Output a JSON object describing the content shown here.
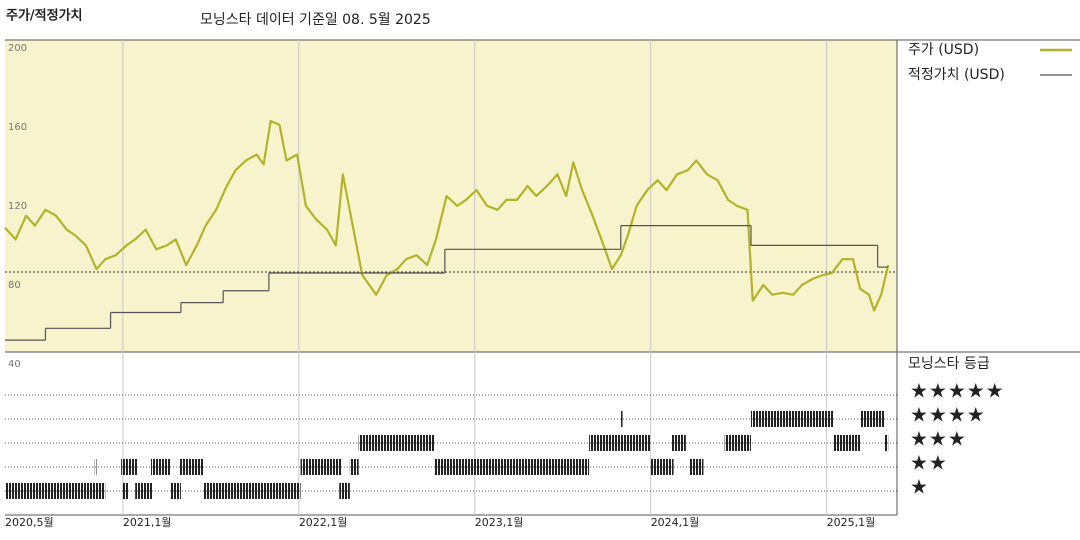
{
  "chart_data": {
    "type": "line",
    "title": "주가/적정가치",
    "subtitle": "모닝스타 데이터 기준일 08. 5월 2025",
    "xlim": [
      2020.33,
      2025.4
    ],
    "xticks": [
      {
        "value": 2020.33,
        "label": "2020,5월"
      },
      {
        "value": 2021.0,
        "label": "2021,1월"
      },
      {
        "value": 2022.0,
        "label": "2022,1월"
      },
      {
        "value": 2023.0,
        "label": "2023,1월"
      },
      {
        "value": 2024.0,
        "label": "2024,1월"
      },
      {
        "value": 2025.0,
        "label": "2025,1월"
      }
    ],
    "ylim": [
      46,
      204
    ],
    "yticks": [
      40,
      80,
      120,
      160,
      200
    ],
    "reference_line": 86.5,
    "series": [
      {
        "name": "주가 (USD)",
        "color": "#b3b32a",
        "x": [
          2020.33,
          2020.39,
          2020.45,
          2020.5,
          2020.56,
          2020.62,
          2020.68,
          2020.73,
          2020.79,
          2020.85,
          2020.9,
          2020.96,
          2021.02,
          2021.07,
          2021.13,
          2021.19,
          2021.25,
          2021.3,
          2021.36,
          2021.42,
          2021.47,
          2021.53,
          2021.59,
          2021.64,
          2021.7,
          2021.76,
          2021.8,
          2021.84,
          2021.89,
          2021.93,
          2021.99,
          2022.04,
          2022.1,
          2022.16,
          2022.21,
          2022.25,
          2022.3,
          2022.36,
          2022.4,
          2022.44,
          2022.5,
          2022.56,
          2022.61,
          2022.67,
          2022.73,
          2022.78,
          2022.84,
          2022.9,
          2022.95,
          2023.01,
          2023.07,
          2023.13,
          2023.18,
          2023.24,
          2023.3,
          2023.35,
          2023.41,
          2023.47,
          2023.52,
          2023.56,
          2023.61,
          2023.67,
          2023.72,
          2023.78,
          2023.83,
          2023.87,
          2023.92,
          2023.98,
          2024.04,
          2024.09,
          2024.15,
          2024.21,
          2024.26,
          2024.32,
          2024.38,
          2024.44,
          2024.49,
          2024.55,
          2024.58,
          2024.64,
          2024.69,
          2024.75,
          2024.81,
          2024.86,
          2024.92,
          2024.98,
          2025.03,
          2025.09,
          2025.15,
          2025.19,
          2025.24,
          2025.27,
          2025.31,
          2025.35
        ],
        "values": [
          109,
          103,
          115,
          110,
          118,
          115,
          108,
          105,
          100,
          88,
          93,
          95,
          100,
          103,
          108,
          98,
          100,
          103,
          90,
          100,
          110,
          118,
          130,
          138,
          143,
          146,
          141,
          163,
          161,
          143,
          146,
          120,
          113,
          108,
          100,
          136,
          113,
          85,
          80,
          75,
          85,
          88,
          93,
          95,
          90,
          103,
          125,
          120,
          123,
          128,
          120,
          118,
          123,
          123,
          130,
          125,
          130,
          136,
          125,
          142,
          128,
          115,
          103,
          88,
          95,
          105,
          120,
          128,
          133,
          128,
          136,
          138,
          143,
          136,
          133,
          123,
          120,
          118,
          72,
          80,
          75,
          76,
          75,
          80,
          83,
          85,
          86,
          93,
          93,
          78,
          75,
          67,
          75,
          90
        ]
      },
      {
        "name": "적정가치 (USD)",
        "color": "#555555",
        "step": true,
        "x": [
          2020.33,
          2020.56,
          2020.93,
          2021.33,
          2021.57,
          2021.83,
          2022.83,
          2023.83,
          2024.57,
          2025.29
        ],
        "values": [
          52,
          58,
          66,
          71,
          77,
          86,
          98,
          110,
          100,
          89
        ]
      }
    ],
    "ratings": {
      "name": "모닝스타 등급",
      "color": "#222222",
      "labels": [
        "★",
        "★★",
        "★★★",
        "★★★★",
        "★★★★★"
      ],
      "periods": [
        {
          "from": 2020.33,
          "to": 2020.9,
          "stars": 1
        },
        {
          "from": 2021.0,
          "to": 2021.03,
          "stars": 1
        },
        {
          "from": 2021.07,
          "to": 2021.17,
          "stars": 1
        },
        {
          "from": 2021.27,
          "to": 2021.33,
          "stars": 1
        },
        {
          "from": 2021.46,
          "to": 2022.01,
          "stars": 1
        },
        {
          "from": 2022.23,
          "to": 2022.29,
          "stars": 1
        },
        {
          "from": 2020.84,
          "to": 2020.85,
          "stars": 2
        },
        {
          "from": 2020.99,
          "to": 2021.08,
          "stars": 2
        },
        {
          "from": 2021.16,
          "to": 2021.27,
          "stars": 2
        },
        {
          "from": 2021.32,
          "to": 2021.46,
          "stars": 2
        },
        {
          "from": 2022.01,
          "to": 2022.24,
          "stars": 2
        },
        {
          "from": 2022.29,
          "to": 2022.34,
          "stars": 2
        },
        {
          "from": 2022.77,
          "to": 2023.65,
          "stars": 2
        },
        {
          "from": 2024.0,
          "to": 2024.13,
          "stars": 2
        },
        {
          "from": 2024.22,
          "to": 2024.3,
          "stars": 2
        },
        {
          "from": 2022.34,
          "to": 2022.77,
          "stars": 3
        },
        {
          "from": 2023.65,
          "to": 2024.0,
          "stars": 3
        },
        {
          "from": 2024.12,
          "to": 2024.2,
          "stars": 3
        },
        {
          "from": 2024.42,
          "to": 2024.57,
          "stars": 3
        },
        {
          "from": 2025.04,
          "to": 2025.19,
          "stars": 3
        },
        {
          "from": 2025.33,
          "to": 2025.35,
          "stars": 3
        },
        {
          "from": 2023.83,
          "to": 2023.84,
          "stars": 4
        },
        {
          "from": 2024.57,
          "to": 2025.04,
          "stars": 4
        },
        {
          "from": 2025.19,
          "to": 2025.33,
          "stars": 4
        }
      ]
    }
  }
}
